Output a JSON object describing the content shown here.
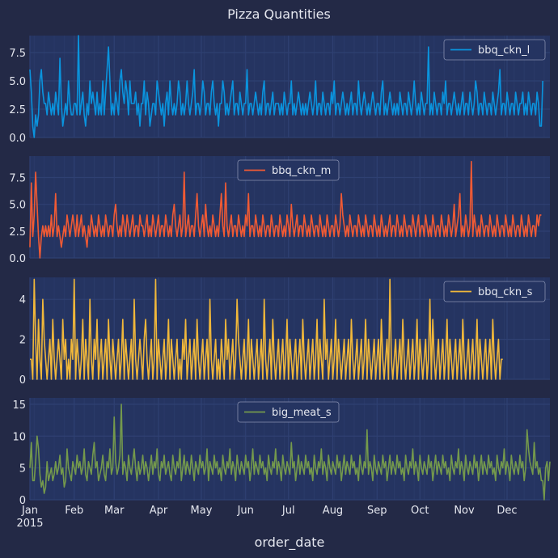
{
  "chart_data": {
    "type": "line",
    "title": "Pizza Quantities",
    "xlabel": "order_date",
    "x_start": "2015-01-01",
    "x_end": "2015-12-31",
    "month_ticks": [
      "Jan",
      "Feb",
      "Mar",
      "Apr",
      "May",
      "Jun",
      "Jul",
      "Aug",
      "Sep",
      "Oct",
      "Nov",
      "Dec"
    ],
    "year_label": "2015",
    "grid": true,
    "panels": [
      {
        "name": "bbq_ckn_l",
        "color": "#0a94de",
        "ylim": [
          0,
          9
        ],
        "yticks": [
          "0.0",
          "2.5",
          "5.0",
          "7.5"
        ],
        "legend_position": "upper right",
        "values": [
          6,
          4,
          1,
          0,
          2,
          1,
          2,
          5,
          6,
          4,
          3,
          3,
          2,
          4,
          3,
          2,
          3,
          2,
          4,
          3,
          2,
          7,
          3,
          1,
          2,
          3,
          2,
          5,
          3,
          2,
          2,
          3,
          3,
          2,
          9,
          2,
          3,
          4,
          2,
          1,
          3,
          2,
          5,
          3,
          4,
          3,
          2,
          4,
          2,
          3,
          2,
          5,
          2,
          4,
          6,
          8,
          5,
          2,
          3,
          2,
          4,
          3,
          2,
          5,
          6,
          4,
          3,
          5,
          4,
          2,
          5,
          3,
          3,
          3,
          4,
          2,
          3,
          1,
          3,
          3,
          5,
          2,
          4,
          3,
          1,
          2,
          3,
          3,
          2,
          5,
          4,
          3,
          2,
          3,
          1,
          3,
          4,
          2,
          5,
          3,
          2,
          3,
          2,
          3,
          5,
          4,
          2,
          3,
          2,
          3,
          5,
          3,
          2,
          3,
          4,
          6,
          2,
          3,
          3,
          2,
          3,
          5,
          4,
          2,
          3,
          3,
          2,
          4,
          5,
          3,
          2,
          3,
          1,
          3,
          3,
          5,
          4,
          2,
          3,
          2,
          3,
          4,
          5,
          2,
          3,
          3,
          2,
          4,
          3,
          2,
          3,
          3,
          6,
          2,
          3,
          3,
          2,
          3,
          4,
          3,
          2,
          3,
          2,
          4,
          5,
          2,
          3,
          3,
          2,
          3,
          4,
          2,
          3,
          3,
          3,
          2,
          3,
          2,
          4,
          3,
          2,
          3,
          3,
          5,
          2,
          3,
          2,
          3,
          4,
          3,
          2,
          3,
          2,
          3,
          2,
          3,
          4,
          3,
          2,
          3,
          5,
          2,
          3,
          3,
          2,
          4,
          3,
          2,
          3,
          3,
          2,
          4,
          3,
          5,
          2,
          3,
          3,
          2,
          3,
          4,
          3,
          2,
          3,
          2,
          3,
          4,
          2,
          3,
          3,
          2,
          5,
          3,
          2,
          3,
          4,
          3,
          2,
          3,
          2,
          3,
          4,
          3,
          2,
          3,
          3,
          2,
          4,
          5,
          2,
          3,
          2,
          3,
          4,
          3,
          2,
          3,
          2,
          3,
          2,
          4,
          3,
          2,
          3,
          3,
          2,
          4,
          3,
          2,
          3,
          5,
          3,
          2,
          3,
          2,
          4,
          3,
          2,
          3,
          3,
          8,
          2,
          3,
          2,
          4,
          3,
          2,
          3,
          3,
          2,
          4,
          3,
          5,
          2,
          3,
          3,
          2,
          3,
          4,
          3,
          2,
          3,
          2,
          3,
          4,
          2,
          3,
          3,
          2,
          4,
          3,
          2,
          3,
          5,
          4,
          2,
          3,
          3,
          2,
          4,
          3,
          2,
          3,
          3,
          2,
          4,
          3,
          2,
          3,
          4,
          6,
          2,
          3,
          3,
          2,
          4,
          3,
          2,
          3,
          3,
          2,
          4,
          3,
          2,
          3,
          3,
          4,
          2,
          3,
          2,
          4,
          3,
          2,
          3,
          3,
          2,
          4,
          3,
          1,
          1,
          5
        ]
      },
      {
        "name": "bbq_ckn_m",
        "color": "#f05a34",
        "ylim": [
          0,
          9.5
        ],
        "yticks": [
          "0.0",
          "2.5",
          "5.0",
          "7.5"
        ],
        "legend_position": "upper center",
        "values": [
          1,
          7,
          2,
          4,
          8,
          5,
          2,
          0,
          2,
          3,
          2,
          3,
          2,
          3,
          2,
          4,
          2,
          3,
          6,
          2,
          3,
          2,
          1,
          2,
          3,
          2,
          4,
          3,
          2,
          3,
          4,
          3,
          2,
          4,
          2,
          3,
          4,
          2,
          3,
          2,
          1,
          3,
          2,
          4,
          3,
          2,
          3,
          2,
          4,
          3,
          2,
          3,
          2,
          4,
          3,
          2,
          3,
          3,
          2,
          4,
          5,
          3,
          2,
          3,
          2,
          4,
          3,
          2,
          4,
          3,
          2,
          3,
          4,
          2,
          3,
          3,
          2,
          4,
          3,
          3,
          2,
          3,
          4,
          2,
          3,
          2,
          4,
          3,
          2,
          3,
          4,
          2,
          3,
          3,
          2,
          4,
          3,
          2,
          3,
          2,
          4,
          5,
          3,
          2,
          3,
          4,
          2,
          3,
          8,
          2,
          3,
          4,
          2,
          3,
          3,
          2,
          4,
          6,
          3,
          2,
          3,
          4,
          2,
          5,
          3,
          2,
          3,
          2,
          4,
          3,
          2,
          3,
          2,
          4,
          6,
          3,
          2,
          7,
          3,
          2,
          3,
          4,
          2,
          3,
          3,
          2,
          4,
          3,
          2,
          3,
          2,
          4,
          3,
          6,
          2,
          3,
          3,
          2,
          4,
          3,
          2,
          3,
          2,
          4,
          3,
          2,
          3,
          3,
          2,
          4,
          3,
          2,
          3,
          3,
          2,
          4,
          3,
          2,
          3,
          2,
          4,
          3,
          2,
          5,
          3,
          2,
          3,
          4,
          2,
          3,
          3,
          2,
          4,
          3,
          2,
          3,
          2,
          4,
          3,
          2,
          3,
          3,
          2,
          4,
          3,
          2,
          3,
          2,
          4,
          3,
          2,
          3,
          3,
          2,
          4,
          3,
          2,
          3,
          6,
          4,
          3,
          2,
          3,
          2,
          4,
          3,
          2,
          3,
          3,
          2,
          4,
          3,
          2,
          3,
          2,
          4,
          3,
          2,
          3,
          3,
          2,
          4,
          3,
          2,
          3,
          2,
          4,
          3,
          2,
          3,
          2,
          3,
          4,
          2,
          3,
          3,
          2,
          4,
          3,
          2,
          3,
          2,
          4,
          3,
          2,
          3,
          3,
          2,
          4,
          3,
          2,
          3,
          4,
          2,
          3,
          3,
          2,
          4,
          3,
          2,
          3,
          2,
          4,
          3,
          2,
          3,
          3,
          2,
          4,
          3,
          2,
          3,
          2,
          4,
          3,
          2,
          3,
          5,
          2,
          3,
          4,
          6,
          2,
          3,
          2,
          4,
          3,
          2,
          3,
          9,
          2,
          4,
          3,
          2,
          3,
          2,
          4,
          3,
          2,
          3,
          3,
          2,
          4,
          3,
          2,
          3,
          2,
          4,
          3,
          2,
          3,
          3,
          2,
          4,
          3,
          2,
          3,
          2,
          4,
          3,
          2,
          3,
          3,
          2,
          4,
          3,
          2,
          3,
          2,
          4,
          3,
          2,
          3,
          3,
          2,
          4,
          3,
          4,
          4
        ]
      },
      {
        "name": "bbq_ckn_s",
        "color": "#f0b73a",
        "ylim": [
          0,
          5.1
        ],
        "yticks": [
          "0",
          "2",
          "4"
        ],
        "legend_position": "upper right",
        "values": [
          1,
          1,
          0,
          5,
          2,
          0,
          3,
          1,
          0,
          4,
          2,
          1,
          0,
          1,
          2,
          0,
          3,
          1,
          0,
          1,
          2,
          1,
          0,
          3,
          1,
          2,
          0,
          1,
          0,
          2,
          1,
          5,
          0,
          2,
          1,
          0,
          1,
          3,
          0,
          2,
          1,
          0,
          4,
          1,
          0,
          2,
          1,
          3,
          0,
          1,
          2,
          0,
          1,
          2,
          0,
          3,
          1,
          0,
          2,
          1,
          0,
          1,
          2,
          0,
          1,
          3,
          0,
          2,
          1,
          0,
          1,
          2,
          0,
          4,
          1,
          0,
          1,
          2,
          1,
          0,
          2,
          3,
          1,
          0,
          1,
          2,
          0,
          1,
          5,
          0,
          2,
          1,
          0,
          1,
          2,
          0,
          1,
          3,
          0,
          2,
          1,
          0,
          1,
          2,
          0,
          1,
          0,
          2,
          1,
          3,
          0,
          1,
          2,
          0,
          1,
          2,
          0,
          3,
          1,
          0,
          1,
          2,
          0,
          1,
          2,
          0,
          4,
          1,
          0,
          1,
          2,
          0,
          1,
          0,
          2,
          1,
          0,
          3,
          1,
          2,
          0,
          1,
          2,
          0,
          1,
          4,
          2,
          1,
          0,
          1,
          2,
          0,
          1,
          3,
          0,
          2,
          1,
          0,
          1,
          2,
          0,
          1,
          2,
          0,
          4,
          1,
          0,
          1,
          2,
          0,
          3,
          1,
          0,
          1,
          2,
          0,
          1,
          2,
          0,
          1,
          3,
          0,
          2,
          1,
          0,
          1,
          2,
          0,
          1,
          2,
          0,
          3,
          1,
          0,
          1,
          2,
          0,
          1,
          2,
          0,
          1,
          3,
          0,
          2,
          1,
          0,
          4,
          1,
          2,
          0,
          1,
          2,
          0,
          1,
          3,
          0,
          2,
          1,
          0,
          1,
          2,
          0,
          1,
          2,
          0,
          3,
          1,
          0,
          1,
          2,
          0,
          1,
          2,
          0,
          1,
          3,
          0,
          2,
          1,
          0,
          1,
          2,
          0,
          1,
          2,
          0,
          3,
          1,
          0,
          1,
          2,
          0,
          5,
          1,
          0,
          1,
          2,
          0,
          1,
          2,
          0,
          3,
          1,
          0,
          1,
          2,
          0,
          1,
          2,
          0,
          1,
          3,
          0,
          2,
          1,
          0,
          1,
          2,
          0,
          1,
          4,
          0,
          3,
          1,
          0,
          1,
          2,
          0,
          1,
          2,
          0,
          1,
          3,
          0,
          2,
          1,
          0,
          1,
          2,
          0,
          1,
          2,
          0,
          3,
          1,
          0,
          1,
          2,
          0,
          1,
          2,
          0,
          1,
          3,
          0,
          2,
          1,
          0,
          1,
          2,
          0,
          1,
          2,
          0,
          3,
          1,
          0,
          1,
          2,
          0,
          1,
          1
        ]
      },
      {
        "name": "big_meat_s",
        "color": "#74994c",
        "ylim": [
          0,
          16
        ],
        "yticks": [
          "0",
          "5",
          "10",
          "15"
        ],
        "legend_position": "upper center",
        "values": [
          5,
          9,
          3,
          3,
          6,
          10,
          8,
          4,
          2,
          3,
          1,
          2,
          6,
          3,
          4,
          5,
          3,
          4,
          6,
          4,
          5,
          7,
          4,
          5,
          2,
          3,
          8,
          5,
          4,
          3,
          6,
          5,
          4,
          7,
          5,
          6,
          4,
          5,
          8,
          4,
          3,
          6,
          5,
          4,
          7,
          9,
          5,
          6,
          3,
          4,
          5,
          7,
          4,
          3,
          6,
          5,
          8,
          4,
          5,
          13,
          6,
          4,
          5,
          7,
          15,
          4,
          6,
          5,
          3,
          7,
          5,
          4,
          6,
          8,
          5,
          3,
          6,
          4,
          5,
          7,
          4,
          6,
          5,
          3,
          5,
          7,
          4,
          6,
          5,
          8,
          4,
          3,
          6,
          5,
          7,
          4,
          5,
          6,
          4,
          3,
          7,
          5,
          4,
          6,
          5,
          8,
          3,
          5,
          7,
          4,
          6,
          5,
          4,
          7,
          5,
          3,
          6,
          5,
          4,
          7,
          5,
          6,
          4,
          5,
          8,
          3,
          6,
          5,
          4,
          7,
          5,
          6,
          4,
          5,
          3,
          7,
          5,
          4,
          6,
          5,
          8,
          4,
          6,
          5,
          3,
          7,
          5,
          4,
          6,
          5,
          4,
          7,
          5,
          6,
          3,
          5,
          8,
          4,
          6,
          5,
          4,
          7,
          5,
          6,
          4,
          5,
          3,
          7,
          5,
          4,
          6,
          5,
          8,
          4,
          6,
          5,
          3,
          7,
          5,
          4,
          6,
          5,
          4,
          9,
          5,
          6,
          3,
          5,
          7,
          4,
          6,
          5,
          4,
          7,
          5,
          6,
          4,
          5,
          3,
          7,
          5,
          4,
          6,
          5,
          8,
          4,
          6,
          5,
          3,
          7,
          5,
          4,
          6,
          5,
          4,
          7,
          5,
          6,
          3,
          5,
          7,
          4,
          6,
          5,
          4,
          7,
          5,
          6,
          4,
          5,
          3,
          7,
          5,
          4,
          6,
          5,
          11,
          4,
          6,
          5,
          3,
          7,
          5,
          4,
          6,
          5,
          4,
          7,
          5,
          6,
          3,
          5,
          7,
          4,
          6,
          5,
          4,
          7,
          5,
          6,
          4,
          5,
          3,
          7,
          5,
          4,
          6,
          5,
          8,
          4,
          6,
          5,
          3,
          7,
          5,
          4,
          6,
          5,
          4,
          7,
          5,
          6,
          3,
          5,
          7,
          4,
          6,
          5,
          4,
          7,
          5,
          6,
          4,
          5,
          3,
          7,
          5,
          4,
          6,
          5,
          8,
          4,
          6,
          5,
          3,
          7,
          5,
          4,
          6,
          5,
          4,
          7,
          5,
          6,
          3,
          5,
          7,
          4,
          6,
          5,
          4,
          7,
          5,
          6,
          4,
          5,
          3,
          7,
          5,
          4,
          6,
          5,
          8,
          4,
          6,
          5,
          3,
          7,
          5,
          4,
          6,
          5,
          4,
          7,
          5,
          6,
          3,
          5,
          11,
          8,
          6,
          5,
          4,
          9,
          5,
          6,
          4,
          5,
          3,
          3,
          0,
          5,
          6,
          3,
          6
        ]
      }
    ]
  }
}
